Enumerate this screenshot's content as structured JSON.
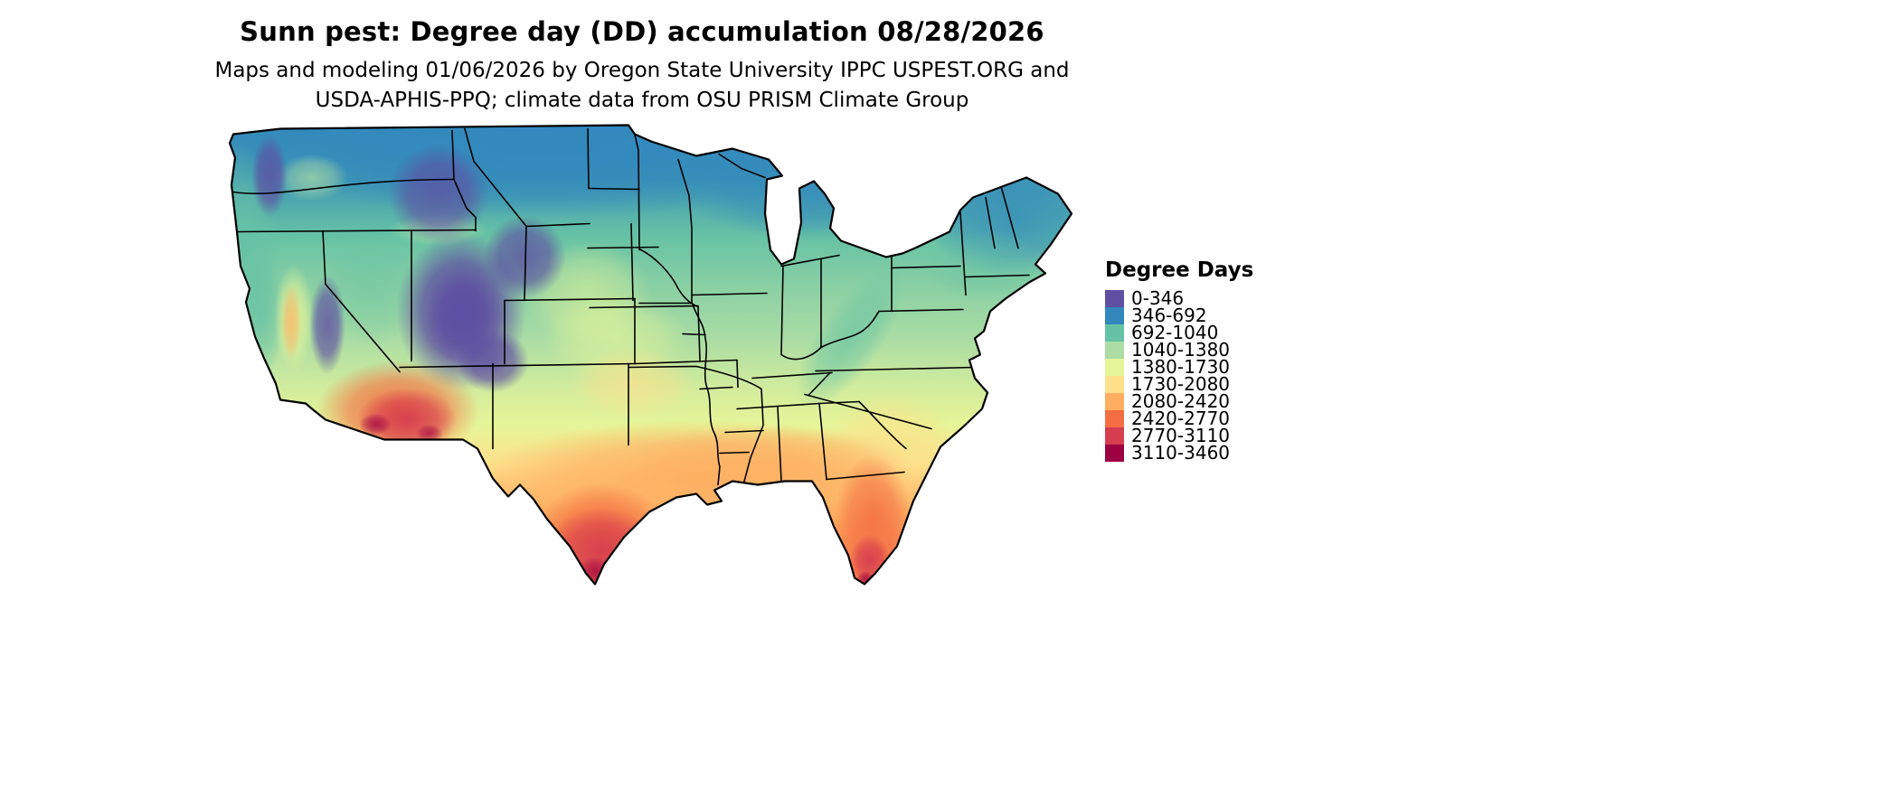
{
  "header": {
    "title": "Sunn pest: Degree day (DD) accumulation 08/28/2026",
    "subtitle_line1": "Maps and modeling 01/06/2026 by Oregon State University IPPC USPEST.ORG and",
    "subtitle_line2": "USDA-APHIS-PPQ; climate data from OSU PRISM Climate Group"
  },
  "legend": {
    "title": "Degree Days",
    "items": [
      {
        "label": "0-346",
        "color": "#5e4fa2"
      },
      {
        "label": "346-692",
        "color": "#3288bd"
      },
      {
        "label": "692-1040",
        "color": "#66c2a5"
      },
      {
        "label": "1040-1380",
        "color": "#abdda4"
      },
      {
        "label": "1380-1730",
        "color": "#e6f598"
      },
      {
        "label": "1730-2080",
        "color": "#fee08b"
      },
      {
        "label": "2080-2420",
        "color": "#fdae61"
      },
      {
        "label": "2420-2770",
        "color": "#f46d43"
      },
      {
        "label": "2770-3110",
        "color": "#d53e4f"
      },
      {
        "label": "3110-3460",
        "color": "#9e0142"
      }
    ]
  }
}
